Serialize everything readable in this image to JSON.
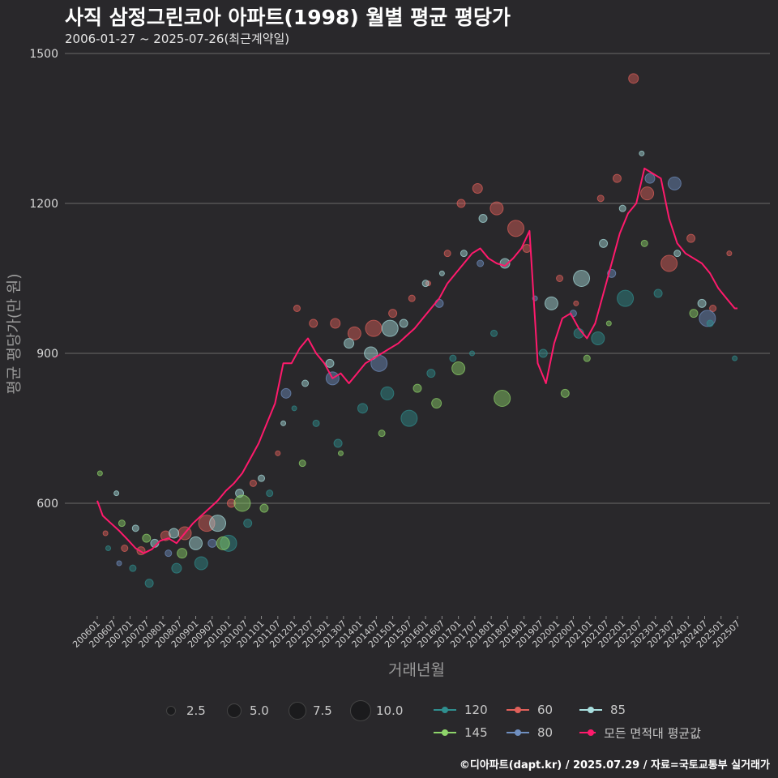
{
  "header": {
    "title": "사직 삼정그린코아 아파트(1998) 월별 평균 평당가",
    "subtitle": "2006-01-27 ~ 2025-07-26(최근계약일)"
  },
  "caption": "©디아파트(dapt.kr) / 2025.07.29 / 자료=국토교통부 실거래가",
  "chart_data": {
    "type": "line",
    "xlabel": "거래년월",
    "ylabel": "평균 평당가(만 원)",
    "ylim": [
      370,
      1500
    ],
    "y_ticks": [
      600,
      900,
      1200,
      1500
    ],
    "x_tick_labels": [
      "200601",
      "200607",
      "200701",
      "200707",
      "200801",
      "200807",
      "200901",
      "200907",
      "201001",
      "201007",
      "201101",
      "201107",
      "201201",
      "201207",
      "201301",
      "201307",
      "201401",
      "201407",
      "201501",
      "201507",
      "201601",
      "201607",
      "201701",
      "201707",
      "201801",
      "201807",
      "201901",
      "201907",
      "202001",
      "202007",
      "202101",
      "202107",
      "202201",
      "202207",
      "202301",
      "202307",
      "202401",
      "202407",
      "202501",
      "202507"
    ],
    "x_range": [
      "2006-01",
      "2025-07"
    ],
    "grid": "horizontal",
    "legend_size": {
      "title": "",
      "entries": [
        "2.5",
        "5.0",
        "7.5",
        "10.0"
      ]
    },
    "series_colors": {
      "120": "#2f8f8f",
      "60": "#e0605a",
      "85": "#a8dede",
      "145": "#8ed46a",
      "80": "#6f8fc0",
      "모든 면적대 평균값": "#ff1a6c"
    },
    "legend_color": [
      "120",
      "60",
      "85",
      "145",
      "80",
      "모든 면적대 평균값"
    ],
    "average_series": {
      "name": "모든 면적대 평균값",
      "x": [
        "2006-01",
        "2006-03",
        "2006-06",
        "2006-09",
        "2006-12",
        "2007-03",
        "2007-06",
        "2007-09",
        "2007-12",
        "2008-03",
        "2008-06",
        "2008-09",
        "2008-12",
        "2009-03",
        "2009-06",
        "2009-09",
        "2009-12",
        "2010-03",
        "2010-06",
        "2010-09",
        "2010-12",
        "2011-03",
        "2011-06",
        "2011-09",
        "2011-12",
        "2012-03",
        "2012-06",
        "2012-09",
        "2012-12",
        "2013-03",
        "2013-06",
        "2013-09",
        "2013-12",
        "2014-03",
        "2014-06",
        "2014-09",
        "2014-12",
        "2015-03",
        "2015-06",
        "2015-09",
        "2015-12",
        "2016-03",
        "2016-06",
        "2016-09",
        "2016-12",
        "2017-03",
        "2017-06",
        "2017-09",
        "2017-12",
        "2018-03",
        "2018-06",
        "2018-09",
        "2018-12",
        "2019-03",
        "2019-06",
        "2019-09",
        "2019-12",
        "2020-03",
        "2020-06",
        "2020-09",
        "2020-12",
        "2021-03",
        "2021-06",
        "2021-09",
        "2021-12",
        "2022-03",
        "2022-06",
        "2022-09",
        "2022-12",
        "2023-03",
        "2023-06",
        "2023-09",
        "2023-12",
        "2024-03",
        "2024-06",
        "2024-09",
        "2024-12",
        "2025-03",
        "2025-06",
        "2025-07"
      ],
      "values": [
        605,
        575,
        560,
        545,
        528,
        510,
        500,
        508,
        525,
        530,
        520,
        540,
        560,
        575,
        590,
        605,
        625,
        640,
        660,
        690,
        720,
        760,
        800,
        880,
        880,
        910,
        930,
        900,
        880,
        850,
        860,
        840,
        860,
        880,
        890,
        900,
        910,
        920,
        935,
        950,
        970,
        990,
        1010,
        1040,
        1060,
        1080,
        1100,
        1110,
        1090,
        1080,
        1075,
        1090,
        1110,
        1145,
        880,
        840,
        920,
        970,
        980,
        950,
        930,
        960,
        1020,
        1080,
        1140,
        1180,
        1200,
        1270,
        1260,
        1250,
        1170,
        1120,
        1100,
        1090,
        1080,
        1060,
        1030,
        1010,
        990,
        990
      ]
    },
    "scatter_series": {
      "120": {
        "x": [
          "2006-05",
          "2007-02",
          "2007-08",
          "2008-06",
          "2009-03",
          "2010-01",
          "2010-08",
          "2011-04",
          "2012-01",
          "2012-09",
          "2013-05",
          "2014-02",
          "2014-11",
          "2015-07",
          "2016-03",
          "2016-11",
          "2017-06",
          "2018-02",
          "2019-08",
          "2020-09",
          "2021-04",
          "2022-02",
          "2023-02",
          "2024-09",
          "2025-06"
        ],
        "values": [
          510,
          470,
          440,
          470,
          480,
          520,
          560,
          620,
          790,
          760,
          720,
          790,
          820,
          770,
          860,
          890,
          900,
          940,
          900,
          940,
          930,
          1010,
          1020,
          960,
          890
        ]
      },
      "60": {
        "x": [
          "2006-04",
          "2006-11",
          "2007-05",
          "2008-02",
          "2008-09",
          "2009-05",
          "2010-02",
          "2010-10",
          "2011-07",
          "2012-02",
          "2012-08",
          "2013-04",
          "2013-11",
          "2014-06",
          "2015-01",
          "2015-08",
          "2016-02",
          "2016-09",
          "2017-02",
          "2017-08",
          "2018-03",
          "2018-10",
          "2019-02",
          "2020-02",
          "2020-08",
          "2021-05",
          "2021-11",
          "2022-05",
          "2022-10",
          "2023-06",
          "2024-02",
          "2024-10",
          "2025-04"
        ],
        "values": [
          540,
          510,
          505,
          535,
          540,
          560,
          600,
          640,
          700,
          990,
          960,
          960,
          940,
          950,
          980,
          1010,
          1040,
          1100,
          1200,
          1230,
          1190,
          1150,
          1110,
          1050,
          1000,
          1210,
          1250,
          1450,
          1220,
          1080,
          1130,
          990,
          1100
        ]
      },
      "85": {
        "x": [
          "2006-08",
          "2007-03",
          "2007-10",
          "2008-05",
          "2009-01",
          "2009-09",
          "2010-05",
          "2011-01",
          "2011-09",
          "2012-05",
          "2013-02",
          "2013-09",
          "2014-05",
          "2014-12",
          "2015-05",
          "2016-01",
          "2016-07",
          "2017-03",
          "2017-10",
          "2018-06",
          "2019-11",
          "2020-10",
          "2021-06",
          "2022-01",
          "2022-08",
          "2023-09",
          "2024-06"
        ],
        "values": [
          620,
          550,
          520,
          540,
          520,
          560,
          620,
          650,
          760,
          840,
          880,
          920,
          900,
          950,
          960,
          1040,
          1060,
          1100,
          1170,
          1080,
          1000,
          1050,
          1120,
          1190,
          1300,
          1100,
          1000
        ]
      },
      "145": {
        "x": [
          "2006-02",
          "2006-10",
          "2007-07",
          "2008-08",
          "2009-11",
          "2010-06",
          "2011-02",
          "2012-04",
          "2013-06",
          "2014-09",
          "2015-10",
          "2016-05",
          "2017-01",
          "2018-05",
          "2020-04",
          "2020-12",
          "2021-08",
          "2022-09",
          "2024-03"
        ],
        "values": [
          660,
          560,
          530,
          500,
          520,
          600,
          590,
          680,
          700,
          740,
          830,
          800,
          870,
          810,
          820,
          890,
          960,
          1120,
          980
        ]
      },
      "80": {
        "x": [
          "2006-09",
          "2008-03",
          "2009-07",
          "2011-10",
          "2013-03",
          "2014-08",
          "2016-06",
          "2017-09",
          "2019-05",
          "2020-07",
          "2021-09",
          "2022-11",
          "2023-08",
          "2024-08"
        ],
        "values": [
          480,
          500,
          520,
          820,
          850,
          880,
          1000,
          1080,
          1010,
          980,
          1060,
          1250,
          1240,
          970
        ]
      }
    }
  }
}
